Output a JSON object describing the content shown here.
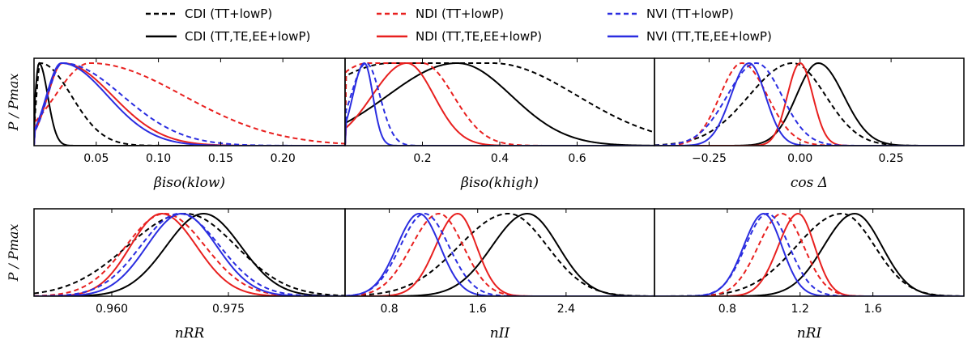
{
  "chart_data": {
    "type": "line",
    "ylabel": "P / Pmax",
    "legend": [
      {
        "label": "CDI (TT+lowP)",
        "color": "#000000",
        "dashed": true
      },
      {
        "label": "CDI (TT,TE,EE+lowP)",
        "color": "#000000",
        "dashed": false
      },
      {
        "label": "NDI (TT+lowP)",
        "color": "#e8201f",
        "dashed": true
      },
      {
        "label": "NDI (TT,TE,EE+lowP)",
        "color": "#e8201f",
        "dashed": false
      },
      {
        "label": "NVI (TT+lowP)",
        "color": "#2a2de0",
        "dashed": true
      },
      {
        "label": "NVI (TT,TE,EE+lowP)",
        "color": "#2a2de0",
        "dashed": false
      }
    ],
    "panels": [
      {
        "xlabel": "βiso(klow)",
        "xlim": [
          0.0,
          0.25
        ],
        "ticks": [
          0.05,
          0.1,
          0.15,
          0.2
        ],
        "tick_labels": [
          "0.05",
          "0.10",
          "0.15",
          "0.20"
        ],
        "series": [
          {
            "name": "CDI (TT+lowP)",
            "shape": "lognormal",
            "peak": 0.005,
            "w_left": 0.003,
            "w_right": 0.025,
            "start": 0.0
          },
          {
            "name": "CDI (TT,TE,EE+lowP)",
            "shape": "lognormal",
            "peak": 0.004,
            "w_left": 0.003,
            "w_right": 0.007,
            "start": 0.0
          },
          {
            "name": "NDI (TT+lowP)",
            "shape": "lognormal",
            "peak": 0.045,
            "w_left": 0.028,
            "w_right": 0.075,
            "start": 0.0
          },
          {
            "name": "NDI (TT,TE,EE+lowP)",
            "shape": "lognormal",
            "peak": 0.023,
            "w_left": 0.012,
            "w_right": 0.04,
            "start": 0.0
          },
          {
            "name": "NVI (TT+lowP)",
            "shape": "lognormal",
            "peak": 0.023,
            "w_left": 0.012,
            "w_right": 0.048,
            "start": 0.0
          },
          {
            "name": "NVI (TT,TE,EE+lowP)",
            "shape": "lognormal",
            "peak": 0.022,
            "w_left": 0.012,
            "w_right": 0.037,
            "start": 0.0
          }
        ]
      },
      {
        "xlabel": "βiso(khigh)",
        "xlim": [
          0.0,
          0.8
        ],
        "ticks": [
          0.2,
          0.4,
          0.6
        ],
        "tick_labels": [
          "0.2",
          "0.4",
          "0.6"
        ],
        "series": [
          {
            "name": "CDI (TT+lowP)",
            "shape": "flat",
            "peak": 0.25,
            "w_left": 0.5,
            "w_right": 0.22,
            "start": 0.0,
            "plateau": 0.26
          },
          {
            "name": "CDI (TT,TE,EE+lowP)",
            "shape": "asym",
            "peak": 0.29,
            "w_left": 0.18,
            "w_right": 0.14,
            "start": 0.0
          },
          {
            "name": "NDI (TT+lowP)",
            "shape": "flat",
            "peak": 0.13,
            "w_left": 0.3,
            "w_right": 0.08,
            "start": 0.0,
            "plateau": 0.14
          },
          {
            "name": "NDI (TT,TE,EE+lowP)",
            "shape": "asym",
            "peak": 0.16,
            "w_left": 0.09,
            "w_right": 0.07,
            "start": 0.0
          },
          {
            "name": "NVI (TT+lowP)",
            "shape": "asym",
            "peak": 0.055,
            "w_left": 0.04,
            "w_right": 0.035,
            "start": 0.0
          },
          {
            "name": "NVI (TT,TE,EE+lowP)",
            "shape": "asym",
            "peak": 0.05,
            "w_left": 0.03,
            "w_right": 0.022,
            "start": 0.0
          }
        ]
      },
      {
        "xlabel": "cos Δ",
        "xlim": [
          -0.4,
          0.45
        ],
        "ticks": [
          -0.25,
          0.0,
          0.25
        ],
        "tick_labels": [
          "−0.25",
          "0.00",
          "0.25"
        ],
        "series": [
          {
            "name": "CDI (TT+lowP)",
            "shape": "asym",
            "peak": -0.02,
            "w_left": 0.12,
            "w_right": 0.09,
            "start": -1.0
          },
          {
            "name": "CDI (TT,TE,EE+lowP)",
            "shape": "asym",
            "peak": 0.05,
            "w_left": 0.06,
            "w_right": 0.07,
            "start": -1.0
          },
          {
            "name": "NDI (TT+lowP)",
            "shape": "asym",
            "peak": -0.16,
            "w_left": 0.06,
            "w_right": 0.07,
            "start": -1.0
          },
          {
            "name": "NDI (TT,TE,EE+lowP)",
            "shape": "asym",
            "peak": 0.0,
            "w_left": 0.035,
            "w_right": 0.035,
            "start": -1.0
          },
          {
            "name": "NVI (TT+lowP)",
            "shape": "asym",
            "peak": -0.12,
            "w_left": 0.08,
            "w_right": 0.07,
            "start": -1.0
          },
          {
            "name": "NVI (TT,TE,EE+lowP)",
            "shape": "asym",
            "peak": -0.14,
            "w_left": 0.05,
            "w_right": 0.045,
            "start": -1.0
          }
        ]
      },
      {
        "xlabel": "nRR",
        "xlim": [
          0.95,
          0.99
        ],
        "ticks": [
          0.96,
          0.975
        ],
        "tick_labels": [
          "0.960",
          "0.975"
        ],
        "series": [
          {
            "name": "CDI (TT+lowP)",
            "shape": "asym",
            "peak": 0.9695,
            "w_left": 0.0075,
            "w_right": 0.0065,
            "start": 0.9
          },
          {
            "name": "CDI (TT,TE,EE+lowP)",
            "shape": "asym",
            "peak": 0.9718,
            "w_left": 0.0048,
            "w_right": 0.0048,
            "start": 0.9
          },
          {
            "name": "NDI (TT+lowP)",
            "shape": "asym",
            "peak": 0.9668,
            "w_left": 0.005,
            "w_right": 0.0052,
            "start": 0.9
          },
          {
            "name": "NDI (TT,TE,EE+lowP)",
            "shape": "asym",
            "peak": 0.9664,
            "w_left": 0.004,
            "w_right": 0.0045,
            "start": 0.9
          },
          {
            "name": "NVI (TT+lowP)",
            "shape": "asym",
            "peak": 0.9687,
            "w_left": 0.005,
            "w_right": 0.0052,
            "start": 0.9
          },
          {
            "name": "NVI (TT,TE,EE+lowP)",
            "shape": "asym",
            "peak": 0.969,
            "w_left": 0.0045,
            "w_right": 0.0045,
            "start": 0.9
          }
        ]
      },
      {
        "xlabel": "nII",
        "xlim": [
          0.4,
          3.2
        ],
        "ticks": [
          0.8,
          1.6,
          2.4
        ],
        "tick_labels": [
          "0.8",
          "1.6",
          "2.4"
        ],
        "series": [
          {
            "name": "CDI (TT+lowP)",
            "shape": "asym",
            "peak": 1.88,
            "w_left": 0.45,
            "w_right": 0.35,
            "start": 0.0
          },
          {
            "name": "CDI (TT,TE,EE+lowP)",
            "shape": "asym",
            "peak": 2.05,
            "w_left": 0.32,
            "w_right": 0.28,
            "start": 0.0
          },
          {
            "name": "NDI (TT+lowP)",
            "shape": "asym",
            "peak": 1.25,
            "w_left": 0.25,
            "w_right": 0.22,
            "start": 0.0
          },
          {
            "name": "NDI (TT,TE,EE+lowP)",
            "shape": "asym",
            "peak": 1.42,
            "w_left": 0.2,
            "w_right": 0.17,
            "start": 0.0
          },
          {
            "name": "NVI (TT+lowP)",
            "shape": "asym",
            "peak": 1.12,
            "w_left": 0.22,
            "w_right": 0.22,
            "start": 0.0
          },
          {
            "name": "NVI (TT,TE,EE+lowP)",
            "shape": "asym",
            "peak": 1.07,
            "w_left": 0.2,
            "w_right": 0.19,
            "start": 0.0
          }
        ]
      },
      {
        "xlabel": "nRI",
        "xlim": [
          0.4,
          2.1
        ],
        "ticks": [
          0.8,
          1.2,
          1.6
        ],
        "tick_labels": [
          "0.8",
          "1.2",
          "1.6"
        ],
        "series": [
          {
            "name": "CDI (TT+lowP)",
            "shape": "asym",
            "peak": 1.43,
            "w_left": 0.25,
            "w_right": 0.18,
            "start": 0.0
          },
          {
            "name": "CDI (TT,TE,EE+lowP)",
            "shape": "asym",
            "peak": 1.5,
            "w_left": 0.17,
            "w_right": 0.15,
            "start": 0.0
          },
          {
            "name": "NDI (TT+lowP)",
            "shape": "asym",
            "peak": 1.1,
            "w_left": 0.13,
            "w_right": 0.12,
            "start": 0.0
          },
          {
            "name": "NDI (TT,TE,EE+lowP)",
            "shape": "asym",
            "peak": 1.19,
            "w_left": 0.11,
            "w_right": 0.09,
            "start": 0.0
          },
          {
            "name": "NVI (TT+lowP)",
            "shape": "asym",
            "peak": 1.02,
            "w_left": 0.12,
            "w_right": 0.12,
            "start": 0.0
          },
          {
            "name": "NVI (TT,TE,EE+lowP)",
            "shape": "asym",
            "peak": 1.0,
            "w_left": 0.11,
            "w_right": 0.1,
            "start": 0.0
          }
        ]
      }
    ]
  }
}
